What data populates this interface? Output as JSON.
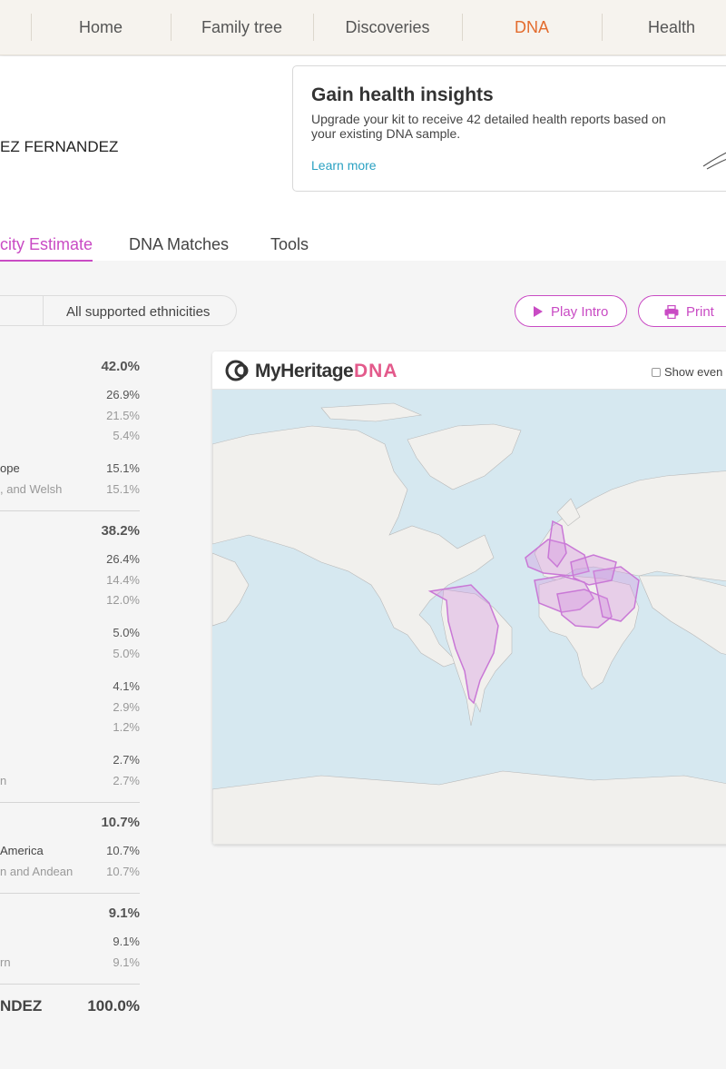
{
  "nav": {
    "items": [
      "Home",
      "Family tree",
      "Discoveries",
      "DNA",
      "Health"
    ],
    "active": "DNA"
  },
  "owner": {
    "name": "EZ FERNANDEZ"
  },
  "promo": {
    "title": "Gain health insights",
    "text": "Upgrade your kit to receive 42 detailed health reports based on your existing DNA sample.",
    "link": "Learn more"
  },
  "tabs": [
    {
      "label": "city Estimate",
      "active": true
    },
    {
      "label": "DNA Matches",
      "active": false
    },
    {
      "label": "Tools",
      "active": false
    }
  ],
  "filter": {
    "label": "All supported ethnicities"
  },
  "buttons": {
    "play_intro": "Play Intro",
    "print": "Print"
  },
  "ethnicity": {
    "groups": [
      {
        "percent": "42.0%",
        "rows": [
          {
            "name": "",
            "percent": "26.9%",
            "level": "mid"
          },
          {
            "name": "",
            "percent": "21.5%",
            "level": "sub"
          },
          {
            "name": "",
            "percent": "5.4%",
            "level": "sub"
          },
          {
            "name": "ope",
            "percent": "15.1%",
            "level": "mid"
          },
          {
            "name": ", and Welsh",
            "percent": "15.1%",
            "level": "sub"
          }
        ]
      },
      {
        "percent": "38.2%",
        "rows": [
          {
            "name": "",
            "percent": "26.4%",
            "level": "mid"
          },
          {
            "name": "",
            "percent": "14.4%",
            "level": "sub"
          },
          {
            "name": "",
            "percent": "12.0%",
            "level": "sub"
          },
          {
            "name": "",
            "percent": "5.0%",
            "level": "mid"
          },
          {
            "name": "",
            "percent": "5.0%",
            "level": "sub"
          },
          {
            "name": "",
            "percent": "4.1%",
            "level": "mid"
          },
          {
            "name": "",
            "percent": "2.9%",
            "level": "sub"
          },
          {
            "name": "",
            "percent": "1.2%",
            "level": "sub"
          },
          {
            "name": "",
            "percent": "2.7%",
            "level": "mid"
          },
          {
            "name": "n",
            "percent": "2.7%",
            "level": "sub"
          }
        ]
      },
      {
        "percent": "10.7%",
        "rows": [
          {
            "name": "America",
            "percent": "10.7%",
            "level": "mid"
          },
          {
            "name": "n and Andean",
            "percent": "10.7%",
            "level": "sub"
          }
        ]
      },
      {
        "percent": "9.1%",
        "rows": [
          {
            "name": "",
            "percent": "9.1%",
            "level": "mid"
          },
          {
            "name": "rn",
            "percent": "9.1%",
            "level": "sub"
          }
        ]
      }
    ],
    "total_name": "NDEZ",
    "total_percent": "100.0%"
  },
  "map": {
    "brand": "MyHeritage",
    "brand_suffix": "DNA",
    "show_events": "Show even",
    "colors": {
      "ocean": "#d6e8f0",
      "land": "#f1f0ed",
      "region_fill": "#d58fe0",
      "region_stroke": "#c978d6"
    }
  },
  "colors": {
    "accent": "#c94bc4",
    "nav_active": "#e36c2e",
    "link": "#2aa1c2"
  }
}
